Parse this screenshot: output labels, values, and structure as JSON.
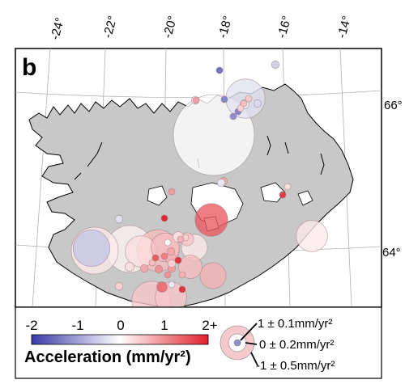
{
  "panel_label": "b",
  "lon_labels": [
    "-24°",
    "-22°",
    "-20°",
    "-18°",
    "-16°",
    "-14°"
  ],
  "lat_labels": [
    "66°",
    "64°"
  ],
  "colorbar": {
    "title": "Acceleration (mm/yr²)",
    "ticks": [
      "-2",
      "-1",
      "0",
      "1",
      "2+"
    ],
    "colors": {
      "neg": "#3a3aa8",
      "zero": "#ffffff",
      "pos": "#e0202a"
    }
  },
  "uncertainty_legend": {
    "items": [
      "1 ± 0.1mm/yr²",
      "0 ± 0.2mm/yr²",
      "-1 ± 0.5mm/yr²"
    ]
  },
  "land_color": "#c8c8c8",
  "stations": [
    {
      "value": -1.5,
      "unc": 0.05
    },
    {
      "value": -0.3,
      "unc": 0.3
    },
    {
      "value": -1.3,
      "unc": 0.05
    },
    {
      "value": -0.5,
      "unc": 0.06
    },
    {
      "value": 0.2,
      "unc": 0.06
    },
    {
      "value": -0.2,
      "unc": 0.07
    },
    {
      "value": -1.2,
      "unc": 0.04
    },
    {
      "value": -1.3,
      "unc": 0.04
    },
    {
      "value": 0.5,
      "unc": 0.05
    },
    {
      "value": 0.0,
      "unc": 0.62
    },
    {
      "value": -0.4,
      "unc": 0.06
    },
    {
      "value": 0.4,
      "unc": 0.03
    },
    {
      "value": 0.6,
      "unc": 0.05
    },
    {
      "value": 1.8,
      "unc": 0.03
    },
    {
      "value": 0.3,
      "unc": 0.05
    },
    {
      "value": 0.8,
      "unc": 0.06
    },
    {
      "value": 1.5,
      "unc": 0.25
    },
    {
      "value": 0.2,
      "unc": 0.24
    },
    {
      "value": 2.0,
      "unc": 0.05
    },
    {
      "value": 0.9,
      "unc": 0.04
    },
    {
      "value": 0.2,
      "unc": 0.2
    },
    {
      "value": 0.3,
      "unc": 0.08
    },
    {
      "value": 0.0,
      "unc": 0.05
    },
    {
      "value": 0.6,
      "unc": 0.22
    },
    {
      "value": -0.6,
      "unc": 0.28
    },
    {
      "value": 0.1,
      "unc": 0.36
    },
    {
      "value": -0.3,
      "unc": 0.06
    },
    {
      "value": 0.6,
      "unc": 0.32
    },
    {
      "value": 0.7,
      "unc": 0.08
    },
    {
      "value": 0.3,
      "unc": 0.24
    },
    {
      "value": 0.6,
      "unc": 0.18
    },
    {
      "value": 1.0,
      "unc": 0.06
    },
    {
      "value": 0.8,
      "unc": 0.06
    },
    {
      "value": 1.0,
      "unc": 0.05
    },
    {
      "value": 1.9,
      "unc": 0.04
    },
    {
      "value": 0.7,
      "unc": 0.05
    },
    {
      "value": 1.2,
      "unc": 0.04
    },
    {
      "value": 0.9,
      "unc": 0.06
    },
    {
      "value": 0.5,
      "unc": 0.24
    },
    {
      "value": 0.7,
      "unc": 0.2
    },
    {
      "value": 1.3,
      "unc": 0.08
    },
    {
      "value": 0.4,
      "unc": 0.06
    },
    {
      "value": 0.5,
      "unc": 0.3
    },
    {
      "value": 1.9,
      "unc": 0.04
    },
    {
      "value": 0.4,
      "unc": 0.05
    },
    {
      "value": -0.2,
      "unc": 0.03
    },
    {
      "value": 0.2,
      "unc": 0.36
    },
    {
      "value": 0.8,
      "unc": 0.06
    },
    {
      "value": 0.6,
      "unc": 0.05
    },
    {
      "value": 0.4,
      "unc": 0.06
    },
    {
      "value": 0.7,
      "unc": 0.05
    },
    {
      "value": 0.3,
      "unc": 0.07
    },
    {
      "value": 1.5,
      "unc": 0.04
    },
    {
      "value": 0.5,
      "unc": 0.1
    },
    {
      "value": -0.2,
      "unc": 0.06
    },
    {
      "value": 0.9,
      "unc": 0.05
    }
  ]
}
